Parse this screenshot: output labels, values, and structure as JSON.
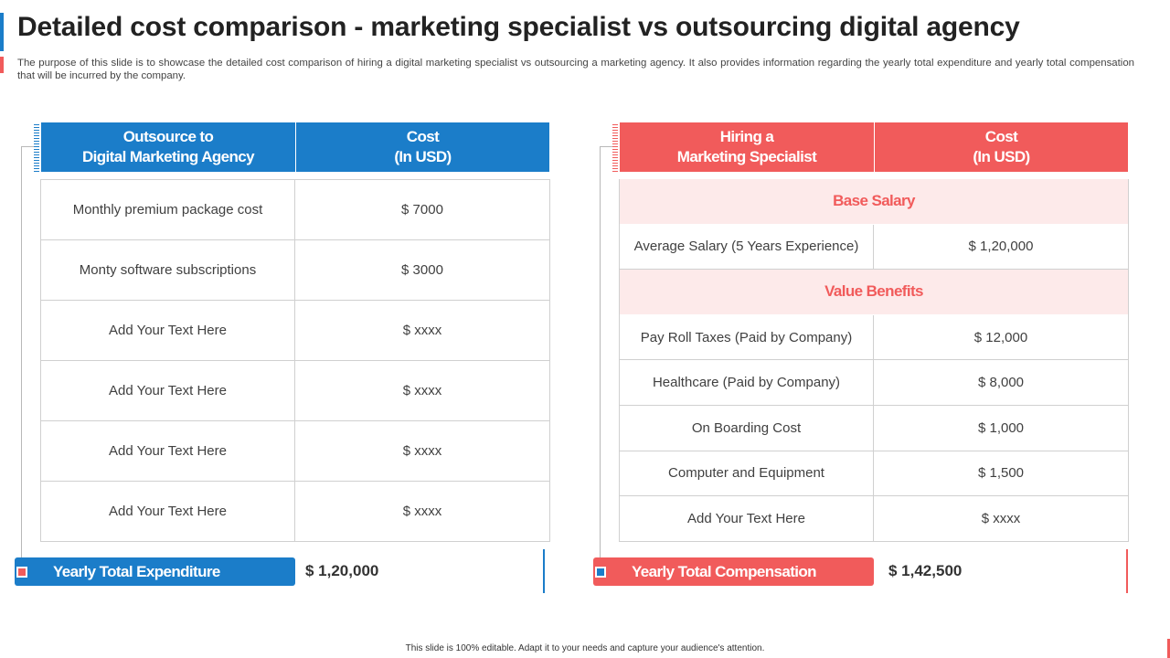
{
  "title": "Detailed cost comparison - marketing specialist vs outsourcing digital agency",
  "description": "The purpose of this slide is to showcase the detailed cost comparison of hiring a digital marketing specialist vs outsourcing a marketing agency. It also provides information regarding the yearly total expenditure and yearly total compensation that will be incurred by the company.",
  "colors": {
    "blue": "#1b7dc9",
    "red": "#f15b5b",
    "pink": "#fdeaea"
  },
  "agency": {
    "header_left": "Outsource to\nDigital Marketing Agency",
    "header_right": "Cost\n(In USD)",
    "rows": [
      {
        "item": "Monthly premium package cost",
        "cost": "$ 7000"
      },
      {
        "item": "Monty software subscriptions",
        "cost": "$ 3000"
      },
      {
        "item": "Add Your Text Here",
        "cost": "$ xxxx"
      },
      {
        "item": "Add Your Text Here",
        "cost": "$ xxxx"
      },
      {
        "item": "Add Your Text Here",
        "cost": "$ xxxx"
      },
      {
        "item": "Add Your Text Here",
        "cost": "$ xxxx"
      }
    ],
    "total_label": "Yearly Total Expenditure",
    "total_value": "$ 1,20,000"
  },
  "specialist": {
    "header_left": "Hiring a\nMarketing Specialist",
    "header_right": "Cost\n(In USD)",
    "section_base": "Base Salary",
    "base_rows": [
      {
        "item": "Average Salary (5 Years Experience)",
        "cost": "$ 1,20,000"
      }
    ],
    "section_benefits": "Value Benefits",
    "benefit_rows": [
      {
        "item": "Pay Roll Taxes (Paid by Company)",
        "cost": "$ 12,000"
      },
      {
        "item": "Healthcare (Paid by Company)",
        "cost": "$ 8,000"
      },
      {
        "item": "On Boarding Cost",
        "cost": "$ 1,000"
      },
      {
        "item": "Computer and Equipment",
        "cost": "$ 1,500"
      },
      {
        "item": "Add Your Text Here",
        "cost": "$ xxxx"
      }
    ],
    "total_label": "Yearly Total Compensation",
    "total_value": "$ 1,42,500"
  },
  "footer": "This slide is 100% editable. Adapt it to your needs and capture your audience's attention."
}
